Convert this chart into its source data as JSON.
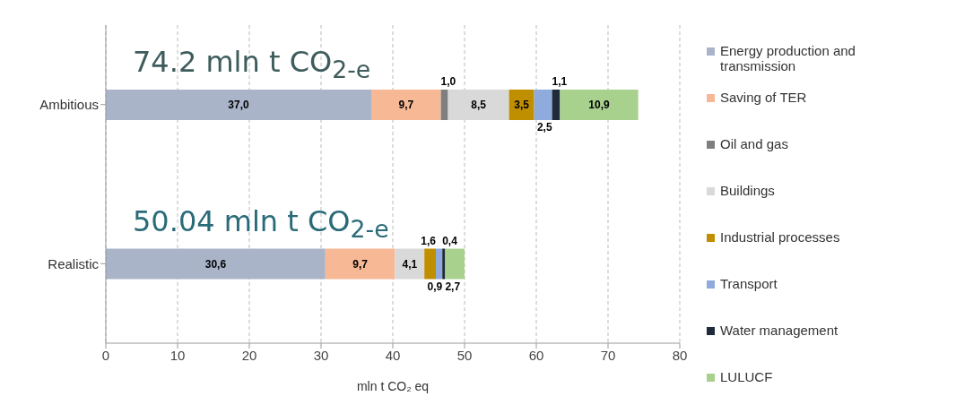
{
  "chart_data": {
    "type": "bar",
    "orientation": "horizontal",
    "stacked": true,
    "xlabel": "mln t CO₂ eq",
    "categories": [
      "Ambitious",
      "Realistic"
    ],
    "series": [
      {
        "name": "Energy production and transmission",
        "color": "#a9b4c8",
        "values": [
          37.0,
          30.6
        ],
        "value_labels": [
          "37,0",
          "30,6"
        ]
      },
      {
        "name": "Saving of TER",
        "color": "#f7b895",
        "values": [
          9.7,
          9.7
        ],
        "value_labels": [
          "9,7",
          "9,7"
        ]
      },
      {
        "name": "Oil and gas",
        "color": "#7f7f7f",
        "values": [
          1.0,
          null
        ],
        "value_labels": [
          "1,0",
          null
        ]
      },
      {
        "name": "Buildings",
        "color": "#d9d9d9",
        "values": [
          8.5,
          4.1
        ],
        "value_labels": [
          "8,5",
          "4,1"
        ]
      },
      {
        "name": "Industrial processes",
        "color": "#bf8f00",
        "values": [
          3.5,
          1.6
        ],
        "value_labels": [
          "3,5",
          "1,6"
        ]
      },
      {
        "name": "Transport",
        "color": "#8faadc",
        "values": [
          2.5,
          0.9
        ],
        "value_labels": [
          "2,5",
          "0,9"
        ]
      },
      {
        "name": "Water management",
        "color": "#1f2a3a",
        "values": [
          1.1,
          0.4
        ],
        "value_labels": [
          "1,1",
          "0,4"
        ]
      },
      {
        "name": "LULUCF",
        "color": "#a9d18e",
        "values": [
          10.9,
          2.7
        ],
        "value_labels": [
          "10,9",
          "2,7"
        ]
      }
    ],
    "annotations": [
      "74.2 mln t CO$_{2-e}$",
      "50.04 mln t CO$_{2-e}$"
    ],
    "xlim": [
      0,
      80
    ],
    "xticks": [
      0,
      10,
      20,
      30,
      40,
      50,
      60,
      70,
      80
    ],
    "grid": "x",
    "legend": "right"
  }
}
